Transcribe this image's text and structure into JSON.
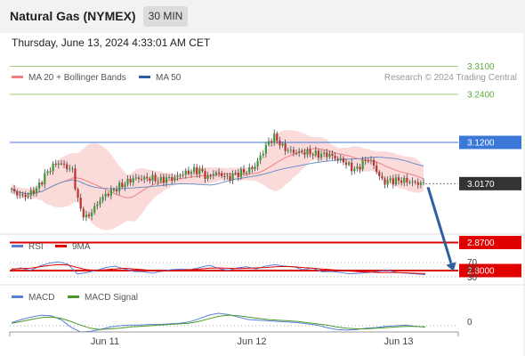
{
  "header": {
    "instrument": "Natural Gas (NYMEX)",
    "timeframe": "30 MIN",
    "datetime": "Thursday, June 13, 2024 4:33:01 AM CET"
  },
  "chart_data": {
    "type": "candlestick",
    "legend": [
      {
        "name": "MA 20 + Bollinger Bands",
        "color": "#f08080"
      },
      {
        "name": "MA 50",
        "color": "#2f5f9f"
      }
    ],
    "credit": "Research © 2024 Trading Central",
    "x_ticks": [
      "Jun 11",
      "Jun 12",
      "Jun 13"
    ],
    "levels": [
      {
        "label": "3.3100",
        "value": 3.31,
        "kind": "target",
        "color": "#5fa83a"
      },
      {
        "label": "3.2400",
        "value": 3.24,
        "kind": "target",
        "color": "#5fa83a"
      },
      {
        "label": "3.1200",
        "value": 3.12,
        "kind": "pivot",
        "color": "#3a78d8"
      },
      {
        "label": "3.0170",
        "value": 3.017,
        "kind": "last",
        "color": "#333333"
      },
      {
        "label": "2.8700",
        "value": 2.87,
        "kind": "support",
        "color": "#e00000"
      },
      {
        "label": "2.8000",
        "value": 2.8,
        "kind": "support",
        "color": "#e00000"
      }
    ],
    "forecast_arrow": {
      "direction": "down",
      "from": 3.017,
      "to": 2.8
    },
    "price_series": [
      3.0,
      2.99,
      2.985,
      2.995,
      3.01,
      3.04,
      3.06,
      3.07,
      3.06,
      3.05,
      2.96,
      2.93,
      2.95,
      2.975,
      2.99,
      3.0,
      3.01,
      3.02,
      3.03,
      3.03,
      3.03,
      3.03,
      3.025,
      3.03,
      3.03,
      3.04,
      3.045,
      3.05,
      3.05,
      3.03,
      3.045,
      3.04,
      3.03,
      3.04,
      3.045,
      3.05,
      3.06,
      3.09,
      3.12,
      3.135,
      3.11,
      3.1,
      3.095,
      3.095,
      3.095,
      3.09,
      3.09,
      3.09,
      3.08,
      3.075,
      3.06,
      3.05,
      3.07,
      3.08,
      3.05,
      3.02,
      3.025,
      3.025,
      3.025,
      3.022,
      3.018,
      3.017
    ],
    "indicators": {
      "rsi": {
        "legend": [
          {
            "name": "RSI",
            "color": "#5b7fd8"
          },
          {
            "name": "9MA",
            "color": "#e00000"
          }
        ],
        "ticks": [
          "70",
          "50",
          "30"
        ],
        "rsi_values": [
          50,
          55,
          48,
          60,
          68,
          72,
          65,
          38,
          42,
          48,
          56,
          60,
          52,
          45,
          44,
          40,
          46,
          50,
          52,
          50,
          56,
          62,
          54,
          48,
          55,
          58,
          52,
          60,
          64,
          60,
          58,
          50,
          55,
          44,
          45,
          42,
          38,
          40,
          42,
          45,
          48,
          42,
          40,
          38,
          36
        ],
        "ma_values": [
          52,
          53,
          54,
          58,
          62,
          64,
          63,
          56,
          50,
          48,
          50,
          52,
          54,
          52,
          50,
          47,
          46,
          47,
          48,
          50,
          52,
          54,
          55,
          54,
          53,
          54,
          55,
          56,
          58,
          59,
          58,
          56,
          54,
          52,
          50,
          48,
          46,
          44,
          43,
          42,
          42,
          42,
          41,
          40,
          39
        ]
      },
      "macd": {
        "legend": [
          {
            "name": "MACD",
            "color": "#5b7fd8"
          },
          {
            "name": "MACD Signal",
            "color": "#4a9a2a"
          }
        ],
        "ticks": [
          "0"
        ],
        "macd_values": [
          0.005,
          0.01,
          0.014,
          0.017,
          0.016,
          0.01,
          -0.002,
          -0.01,
          -0.009,
          -0.006,
          -0.002,
          0.0,
          0.001,
          0.001,
          0.002,
          0.002,
          0.003,
          0.004,
          0.006,
          0.011,
          0.017,
          0.02,
          0.018,
          0.014,
          0.01,
          0.009,
          0.008,
          0.007,
          0.006,
          0.005,
          0.003,
          0.001,
          -0.003,
          -0.006,
          -0.007,
          -0.006,
          -0.004,
          -0.003,
          -0.001,
          0.0,
          0.001,
          -0.001,
          -0.002
        ],
        "signal_values": [
          0.004,
          0.007,
          0.01,
          0.013,
          0.014,
          0.012,
          0.007,
          0.001,
          -0.004,
          -0.006,
          -0.005,
          -0.004,
          -0.002,
          -0.001,
          0.0,
          0.001,
          0.002,
          0.003,
          0.004,
          0.007,
          0.011,
          0.015,
          0.017,
          0.016,
          0.014,
          0.012,
          0.01,
          0.009,
          0.008,
          0.007,
          0.005,
          0.003,
          0.001,
          -0.002,
          -0.004,
          -0.005,
          -0.005,
          -0.004,
          -0.003,
          -0.002,
          -0.001,
          -0.001,
          -0.002
        ]
      }
    }
  }
}
